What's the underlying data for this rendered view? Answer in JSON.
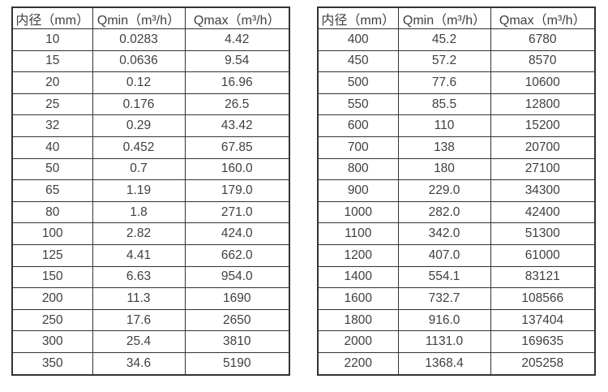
{
  "colors": {
    "background": "#ffffff",
    "border": "#333333",
    "text": "#404040"
  },
  "tables": [
    {
      "name": "flow-range-table-small-diameters",
      "headers": [
        "内径（mm）",
        "Qmin（m³/h）",
        "Qmax（m³/h）"
      ],
      "rows": [
        [
          "10",
          "0.0283",
          "4.42"
        ],
        [
          "15",
          "0.0636",
          "9.54"
        ],
        [
          "20",
          "0.12",
          "16.96"
        ],
        [
          "25",
          "0.176",
          "26.5"
        ],
        [
          "32",
          "0.29",
          "43.42"
        ],
        [
          "40",
          "0.452",
          "67.85"
        ],
        [
          "50",
          "0.7",
          "160.0"
        ],
        [
          "65",
          "1.19",
          "179.0"
        ],
        [
          "80",
          "1.8",
          "271.0"
        ],
        [
          "100",
          "2.82",
          "424.0"
        ],
        [
          "125",
          "4.41",
          "662.0"
        ],
        [
          "150",
          "6.63",
          "954.0"
        ],
        [
          "200",
          "11.3",
          "1690"
        ],
        [
          "250",
          "17.6",
          "2650"
        ],
        [
          "300",
          "25.4",
          "3810"
        ],
        [
          "350",
          "34.6",
          "5190"
        ]
      ]
    },
    {
      "name": "flow-range-table-large-diameters",
      "headers": [
        "内径（mm）",
        "Qmin（m³/h）",
        "Qmax（m³/h）"
      ],
      "rows": [
        [
          "400",
          "45.2",
          "6780"
        ],
        [
          "450",
          "57.2",
          "8570"
        ],
        [
          "500",
          "77.6",
          "10600"
        ],
        [
          "550",
          "85.5",
          "12800"
        ],
        [
          "600",
          "110",
          "15200"
        ],
        [
          "700",
          "138",
          "20700"
        ],
        [
          "800",
          "180",
          "27100"
        ],
        [
          "900",
          "229.0",
          "34300"
        ],
        [
          "1000",
          "282.0",
          "42400"
        ],
        [
          "1100",
          "342.0",
          "51300"
        ],
        [
          "1200",
          "407.0",
          "61000"
        ],
        [
          "1400",
          "554.1",
          "83121"
        ],
        [
          "1600",
          "732.7",
          "108566"
        ],
        [
          "1800",
          "916.0",
          "137404"
        ],
        [
          "2000",
          "1131.0",
          "169635"
        ],
        [
          "2200",
          "1368.4",
          "205258"
        ]
      ]
    }
  ]
}
